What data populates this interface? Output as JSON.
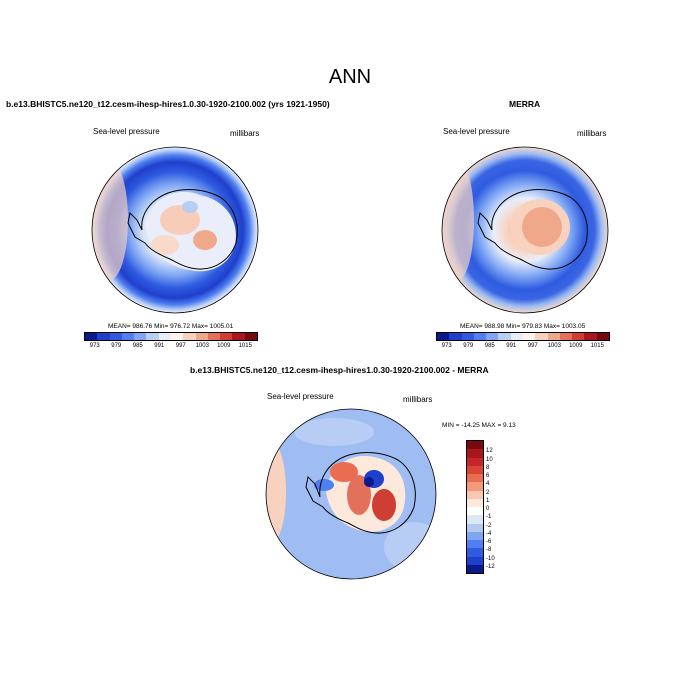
{
  "title": "ANN",
  "panels": {
    "model": {
      "title": "b.e13.BHISTC5.ne120_t12.cesm-ihesp-hires1.0.30-1920-2100.002 (yrs 1921-1950)",
      "field_label": "Sea-level pressure",
      "units": "millibars",
      "stats": "MEAN= 986.76  Min= 976.72  Max= 1005.01"
    },
    "obs": {
      "title": "MERRA",
      "field_label": "Sea-level pressure",
      "units": "millibars",
      "stats": "MEAN= 988.98  Min= 979.83  Max= 1003.05"
    },
    "diff": {
      "title": "b.e13.BHISTC5.ne120_t12.cesm-ihesp-hires1.0.30-1920-2100.002 - MERRA",
      "field_label": "Sea-level pressure",
      "units": "millibars",
      "stats": "MIN = -14.25 MAX =   9.13"
    }
  },
  "colorbar_abs": {
    "labels": [
      "973",
      "979",
      "985",
      "991",
      "997",
      "1003",
      "1009",
      "1015"
    ],
    "colors": [
      "#0a1a8a",
      "#1f3fcc",
      "#2f5be0",
      "#4f7ff0",
      "#7ea6f4",
      "#b7cdf4",
      "#e6eefa",
      "#fff3ea",
      "#f8d2bf",
      "#f0a88a",
      "#e2705a",
      "#cf3e32",
      "#a9171c",
      "#7a0a10"
    ]
  },
  "colorbar_diff": {
    "labels": [
      "12",
      "10",
      "8",
      "6",
      "4",
      "2",
      "1",
      "0",
      "-1",
      "-2",
      "-4",
      "-6",
      "-8",
      "-10",
      "-12"
    ],
    "colors": [
      "#7a0a10",
      "#a9171c",
      "#c4262a",
      "#d84534",
      "#ea6d52",
      "#f39a7c",
      "#f8c8b0",
      "#fde8dc",
      "#ffffff",
      "#dde8f7",
      "#b3c9f2",
      "#7ea6f0",
      "#4f7ff0",
      "#2f5be0",
      "#1f3fcc",
      "#0a1a8a"
    ]
  },
  "chart_data": [
    {
      "type": "heatmap",
      "title": "b.e13.BHISTC5.ne120_t12.cesm-ihesp-hires1.0.30-1920-2100.002 (yrs 1921-1950)",
      "variable": "Sea-level pressure",
      "units": "millibars",
      "projection": "south polar stereographic",
      "mean": 986.76,
      "min": 976.72,
      "max": 1005.01,
      "contour_levels": [
        973,
        976,
        979,
        982,
        985,
        988,
        991,
        994,
        997,
        1000,
        1003,
        1006,
        1009,
        1012,
        1015
      ]
    },
    {
      "type": "heatmap",
      "title": "MERRA",
      "variable": "Sea-level pressure",
      "units": "millibars",
      "projection": "south polar stereographic",
      "mean": 988.98,
      "min": 979.83,
      "max": 1003.05,
      "contour_levels": [
        973,
        976,
        979,
        982,
        985,
        988,
        991,
        994,
        997,
        1000,
        1003,
        1006,
        1009,
        1012,
        1015
      ]
    },
    {
      "type": "heatmap",
      "title": "b.e13.BHISTC5.ne120_t12.cesm-ihesp-hires1.0.30-1920-2100.002 - MERRA",
      "variable": "Sea-level pressure",
      "units": "millibars",
      "projection": "south polar stereographic",
      "min": -14.25,
      "max": 9.13,
      "contour_levels": [
        -12,
        -10,
        -8,
        -6,
        -4,
        -2,
        -1,
        0,
        1,
        2,
        4,
        6,
        8,
        10,
        12
      ]
    }
  ]
}
